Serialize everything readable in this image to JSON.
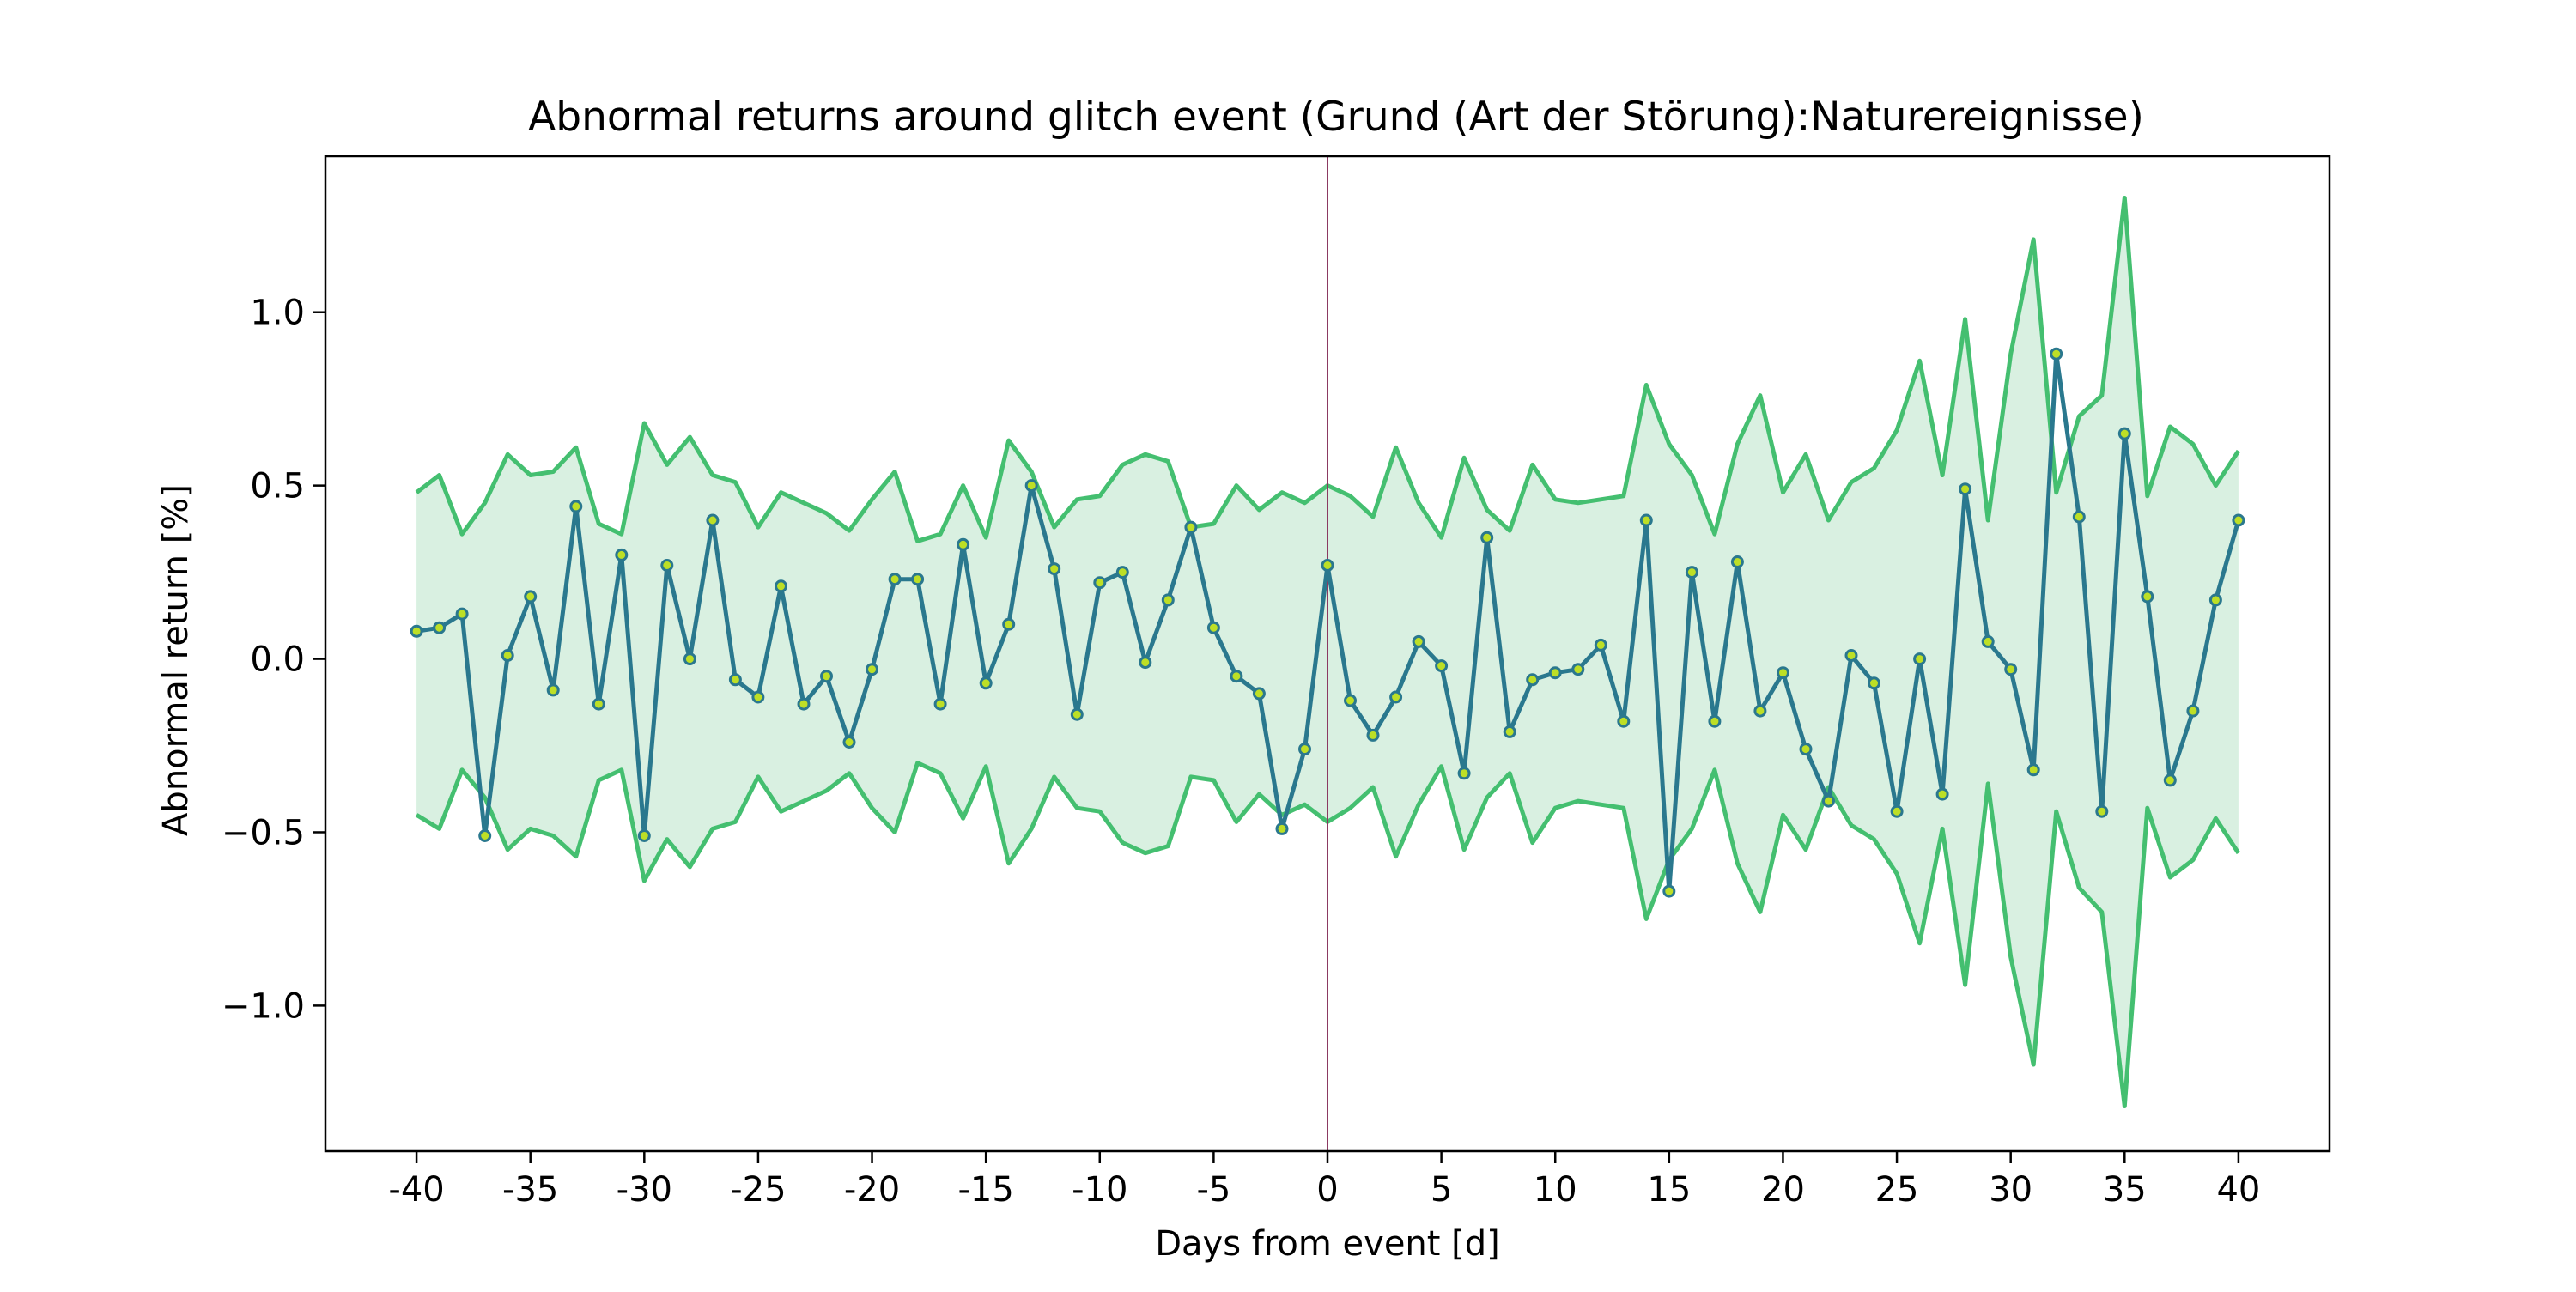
{
  "chart_data": {
    "type": "line",
    "title": "Abnormal returns around glitch event (Grund (Art der Störung):Naturereignisse)",
    "xlabel": "Days from event [d]",
    "ylabel": "Abnormal return [%]",
    "xlim": [
      -44,
      44
    ],
    "ylim": [
      -1.42,
      1.45
    ],
    "xticks": [
      -40,
      -35,
      -30,
      -25,
      -20,
      -15,
      -10,
      -5,
      0,
      5,
      10,
      15,
      20,
      25,
      30,
      35,
      40
    ],
    "xtick_labels": [
      "-40",
      "-35",
      "-30",
      "-25",
      "-20",
      "-15",
      "-10",
      "-5",
      "0",
      "5",
      "10",
      "15",
      "20",
      "25",
      "30",
      "35",
      "40"
    ],
    "yticks": [
      -1.0,
      -0.5,
      0.0,
      0.5,
      1.0
    ],
    "ytick_labels": [
      "−1.0",
      "−0.5",
      "0.0",
      "0.5",
      "1.0"
    ],
    "event_day": 0,
    "grid": false,
    "colors": {
      "main_line": "#2a788e",
      "marker_fill": "#bddf26",
      "band_line": "#44bf70",
      "band_fill": "#d9f0e1",
      "event_line": "#8b3a62"
    },
    "x": [
      -40,
      -39,
      -38,
      -37,
      -36,
      -35,
      -34,
      -33,
      -32,
      -31,
      -30,
      -29,
      -28,
      -27,
      -26,
      -25,
      -24,
      -23,
      -22,
      -21,
      -20,
      -19,
      -18,
      -17,
      -16,
      -15,
      -14,
      -13,
      -12,
      -11,
      -10,
      -9,
      -8,
      -7,
      -6,
      -5,
      -4,
      -3,
      -2,
      -1,
      0,
      1,
      2,
      3,
      4,
      5,
      6,
      7,
      8,
      9,
      10,
      11,
      12,
      13,
      14,
      15,
      16,
      17,
      18,
      19,
      20,
      21,
      22,
      23,
      24,
      25,
      26,
      27,
      28,
      29,
      30,
      31,
      32,
      33,
      34,
      35,
      36,
      37,
      38,
      39,
      40
    ],
    "series": [
      {
        "role": "abnormal_return",
        "values": [
          0.08,
          0.09,
          0.13,
          -0.51,
          0.01,
          0.18,
          -0.09,
          0.44,
          -0.13,
          0.3,
          -0.51,
          0.27,
          0.0,
          0.4,
          -0.06,
          -0.11,
          0.21,
          -0.13,
          -0.05,
          -0.24,
          -0.03,
          0.23,
          0.23,
          -0.13,
          0.33,
          -0.07,
          0.1,
          0.5,
          0.26,
          -0.16,
          0.22,
          0.25,
          -0.01,
          0.17,
          0.38,
          0.09,
          -0.05,
          -0.1,
          -0.49,
          -0.26,
          0.27,
          -0.12,
          -0.22,
          -0.11,
          0.05,
          -0.02,
          -0.33,
          0.35,
          -0.21,
          -0.06,
          -0.04,
          -0.03,
          0.04,
          -0.18,
          0.4,
          -0.67,
          0.25,
          -0.18,
          0.28,
          -0.15,
          -0.04,
          -0.26,
          -0.41,
          0.01,
          -0.07,
          -0.44,
          0.0,
          -0.39,
          0.49,
          0.05,
          -0.03,
          -0.32,
          0.88,
          0.41,
          -0.44,
          0.65,
          0.18,
          -0.35,
          -0.15,
          0.17,
          0.4
        ]
      },
      {
        "role": "upper_band",
        "values": [
          0.48,
          0.53,
          0.36,
          0.45,
          0.59,
          0.53,
          0.54,
          0.61,
          0.39,
          0.36,
          0.68,
          0.56,
          0.64,
          0.53,
          0.51,
          0.38,
          0.48,
          0.45,
          0.42,
          0.37,
          0.46,
          0.54,
          0.34,
          0.36,
          0.5,
          0.35,
          0.63,
          0.54,
          0.38,
          0.46,
          0.47,
          0.56,
          0.59,
          0.57,
          0.38,
          0.39,
          0.5,
          0.43,
          0.48,
          0.45,
          0.5,
          0.47,
          0.41,
          0.61,
          0.45,
          0.35,
          0.58,
          0.43,
          0.37,
          0.56,
          0.46,
          0.45,
          0.46,
          0.47,
          0.79,
          0.62,
          0.53,
          0.36,
          0.62,
          0.76,
          0.48,
          0.59,
          0.4,
          0.51,
          0.55,
          0.66,
          0.86,
          0.53,
          0.98,
          0.4,
          0.88,
          1.21,
          0.48,
          0.7,
          0.76,
          1.33,
          0.47,
          0.67,
          0.62,
          0.5,
          0.6
        ]
      },
      {
        "role": "lower_band",
        "values": [
          -0.45,
          -0.49,
          -0.32,
          -0.4,
          -0.55,
          -0.49,
          -0.51,
          -0.57,
          -0.35,
          -0.32,
          -0.64,
          -0.52,
          -0.6,
          -0.49,
          -0.47,
          -0.34,
          -0.44,
          -0.41,
          -0.38,
          -0.33,
          -0.43,
          -0.5,
          -0.3,
          -0.33,
          -0.46,
          -0.31,
          -0.59,
          -0.49,
          -0.34,
          -0.43,
          -0.44,
          -0.53,
          -0.56,
          -0.54,
          -0.34,
          -0.35,
          -0.47,
          -0.39,
          -0.45,
          -0.42,
          -0.47,
          -0.43,
          -0.37,
          -0.57,
          -0.42,
          -0.31,
          -0.55,
          -0.4,
          -0.33,
          -0.53,
          -0.43,
          -0.41,
          -0.42,
          -0.43,
          -0.75,
          -0.58,
          -0.49,
          -0.32,
          -0.59,
          -0.73,
          -0.45,
          -0.55,
          -0.37,
          -0.48,
          -0.52,
          -0.62,
          -0.82,
          -0.49,
          -0.94,
          -0.36,
          -0.86,
          -1.17,
          -0.44,
          -0.66,
          -0.73,
          -1.29,
          -0.43,
          -0.63,
          -0.58,
          -0.46,
          -0.56
        ]
      }
    ]
  }
}
